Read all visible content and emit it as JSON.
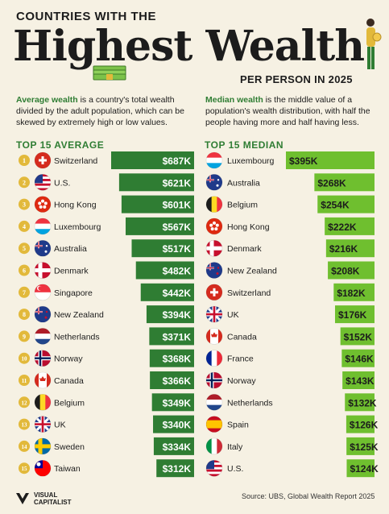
{
  "header": {
    "line1": "COUNTRIES WITH THE",
    "line2": "Highest Wealth",
    "line3": "PER PERSON IN 2025"
  },
  "descriptions": {
    "average_term": "Average wealth",
    "average_text": " is a country's total wealth divided by the adult population, which can be skewed by extremely high or low values.",
    "median_term": "Median wealth",
    "median_text": " is the middle value of a population's wealth distribution, with half the people having more and half having less."
  },
  "colors": {
    "background": "#f6f1e3",
    "average_bar": "#2f7d33",
    "median_bar": "#6fbf2f",
    "accent_text": "#2f7d33",
    "rank_badge": "#e2b93b"
  },
  "chart_data": [
    {
      "type": "bar",
      "title": "TOP 15 AVERAGE",
      "unit": "K",
      "categories": [
        "Switzerland",
        "U.S.",
        "Hong Kong",
        "Luxembourg",
        "Australia",
        "Denmark",
        "Singapore",
        "New Zealand",
        "Netherlands",
        "Norway",
        "Canada",
        "Belgium",
        "UK",
        "Sweden",
        "Taiwan"
      ],
      "ranks": [
        "1",
        "2",
        "3",
        "4",
        "5",
        "6",
        "7",
        "8",
        "9",
        "10",
        "11",
        "12",
        "13",
        "14",
        "15"
      ],
      "values": [
        687,
        621,
        601,
        567,
        517,
        482,
        442,
        394,
        371,
        368,
        366,
        349,
        340,
        334,
        312
      ],
      "labels": [
        "$687K",
        "$621K",
        "$601K",
        "$567K",
        "$517K",
        "$482K",
        "$442K",
        "$394K",
        "$371K",
        "$368K",
        "$366K",
        "$349K",
        "$340K",
        "$334K",
        "$312K"
      ],
      "flags": [
        "switzerland-flag",
        "us-flag",
        "hong-kong-flag",
        "luxembourg-flag",
        "australia-flag",
        "denmark-flag",
        "singapore-flag",
        "new-zealand-flag",
        "netherlands-flag",
        "norway-flag",
        "canada-flag",
        "belgium-flag",
        "uk-flag",
        "sweden-flag",
        "taiwan-flag"
      ]
    },
    {
      "type": "bar",
      "title": "TOP 15 MEDIAN",
      "unit": "K",
      "categories": [
        "Luxembourg",
        "Australia",
        "Belgium",
        "Hong Kong",
        "Denmark",
        "New Zealand",
        "Switzerland",
        "UK",
        "Canada",
        "France",
        "Norway",
        "Netherlands",
        "Spain",
        "Italy",
        "U.S."
      ],
      "values": [
        395,
        268,
        254,
        222,
        216,
        208,
        182,
        176,
        152,
        146,
        143,
        132,
        126,
        125,
        124
      ],
      "labels": [
        "$395K",
        "$268K",
        "$254K",
        "$222K",
        "$216K",
        "$208K",
        "$182K",
        "$176K",
        "$152K",
        "$146K",
        "$143K",
        "$132K",
        "$126K",
        "$125K",
        "$124K"
      ],
      "flags": [
        "luxembourg-flag",
        "australia-flag",
        "belgium-flag",
        "hong-kong-flag",
        "denmark-flag",
        "new-zealand-flag",
        "switzerland-flag",
        "uk-flag",
        "canada-flag",
        "france-flag",
        "norway-flag",
        "netherlands-flag",
        "spain-flag",
        "italy-flag",
        "us-flag"
      ]
    }
  ],
  "footer": {
    "logo_line1": "VISUAL",
    "logo_line2": "CAPITALIST",
    "source": "Source: UBS, Global Wealth Report 2025"
  }
}
